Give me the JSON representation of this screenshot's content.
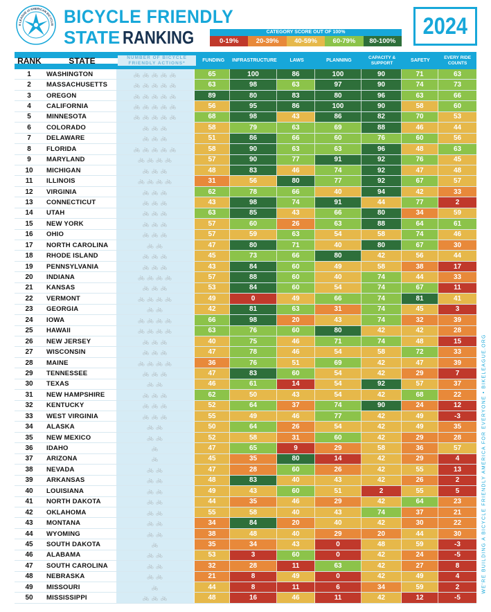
{
  "header": {
    "title_line1": "BICYCLE FRIENDLY",
    "title_line2_word1": "STATE",
    "title_line2_word2": "RANKING",
    "year": "2024",
    "logo_text": "THE LEAGUE of AMERICAN BICYCLISTS"
  },
  "legend": {
    "title": "CATEGORY SCORE OUT OF 100%",
    "items": [
      {
        "label": "0-19%",
        "color": "#c0392b"
      },
      {
        "label": "20-39%",
        "color": "#e8893a"
      },
      {
        "label": "40-59%",
        "color": "#e6b84a"
      },
      {
        "label": "60-79%",
        "color": "#8cc34a"
      },
      {
        "label": "80-100%",
        "color": "#2e6f3a"
      }
    ]
  },
  "side_text": "WE'RE BUILDING A BICYCLE FRIENDLY AMERICA FOR EVERYONE • BIKELEAGUE.ORG",
  "chart_data": {
    "type": "table",
    "columns": [
      "RANK",
      "STATE",
      "NUMBER OF BICYCLE FRIENDLY ACTIONS*",
      "FUNDING",
      "INFRASTRUCTURE",
      "LAWS",
      "PLANNING",
      "CAPACITY & SUPPORT",
      "SAFETY",
      "EVERY RIDE COUNTS"
    ],
    "rows": [
      [
        1,
        "WASHINGTON",
        5,
        65,
        100,
        86,
        100,
        90,
        71,
        63
      ],
      [
        2,
        "MASSACHUSETTS",
        5,
        63,
        98,
        63,
        97,
        90,
        74,
        73
      ],
      [
        3,
        "OREGON",
        5,
        89,
        80,
        83,
        80,
        96,
        63,
        66
      ],
      [
        4,
        "CALIFORNIA",
        5,
        56,
        95,
        86,
        100,
        90,
        58,
        60
      ],
      [
        5,
        "MINNESOTA",
        5,
        68,
        98,
        43,
        86,
        82,
        70,
        53
      ],
      [
        6,
        "COLORADO",
        3,
        58,
        79,
        63,
        69,
        88,
        46,
        44
      ],
      [
        7,
        "DELAWARE",
        3,
        51,
        86,
        66,
        60,
        76,
        60,
        56
      ],
      [
        8,
        "FLORIDA",
        5,
        58,
        90,
        63,
        63,
        96,
        48,
        63
      ],
      [
        9,
        "MARYLAND",
        4,
        57,
        90,
        77,
        91,
        92,
        76,
        45
      ],
      [
        10,
        "MICHIGAN",
        3,
        48,
        83,
        46,
        74,
        92,
        47,
        48
      ],
      [
        11,
        "ILLINOIS",
        4,
        31,
        56,
        80,
        77,
        92,
        67,
        57
      ],
      [
        12,
        "VIRGINIA",
        3,
        62,
        78,
        66,
        40,
        94,
        42,
        33
      ],
      [
        13,
        "CONNECTICUT",
        3,
        43,
        98,
        74,
        91,
        44,
        77,
        2
      ],
      [
        14,
        "UTAH",
        3,
        63,
        85,
        43,
        66,
        80,
        34,
        59
      ],
      [
        15,
        "NEW YORK",
        3,
        57,
        60,
        26,
        63,
        88,
        64,
        61
      ],
      [
        16,
        "OHIO",
        3,
        57,
        59,
        63,
        54,
        58,
        74,
        46
      ],
      [
        17,
        "NORTH CAROLINA",
        2,
        47,
        80,
        71,
        40,
        80,
        67,
        30
      ],
      [
        18,
        "RHODE ISLAND",
        3,
        45,
        73,
        66,
        80,
        42,
        56,
        44
      ],
      [
        19,
        "PENNSYLVANIA",
        3,
        43,
        84,
        60,
        49,
        58,
        38,
        17
      ],
      [
        20,
        "INDIANA",
        4,
        57,
        88,
        60,
        40,
        74,
        44,
        33
      ],
      [
        21,
        "KANSAS",
        3,
        53,
        84,
        60,
        54,
        74,
        67,
        11
      ],
      [
        22,
        "VERMONT",
        4,
        49,
        0,
        49,
        66,
        74,
        81,
        41
      ],
      [
        23,
        "GEORGIA",
        2,
        42,
        81,
        63,
        31,
        74,
        45,
        3
      ],
      [
        24,
        "IOWA",
        4,
        66,
        98,
        20,
        43,
        74,
        32,
        39
      ],
      [
        25,
        "HAWAII",
        4,
        63,
        76,
        60,
        80,
        42,
        42,
        28
      ],
      [
        26,
        "NEW JERSEY",
        3,
        40,
        75,
        46,
        71,
        74,
        48,
        15
      ],
      [
        27,
        "WISCONSIN",
        3,
        47,
        78,
        46,
        54,
        58,
        72,
        33
      ],
      [
        28,
        "MAINE",
        4,
        36,
        76,
        51,
        69,
        42,
        47,
        39
      ],
      [
        29,
        "TENNESSEE",
        3,
        47,
        83,
        60,
        54,
        42,
        29,
        7
      ],
      [
        30,
        "TEXAS",
        2,
        46,
        61,
        14,
        54,
        92,
        57,
        37
      ],
      [
        31,
        "NEW HAMPSHIRE",
        3,
        62,
        50,
        43,
        54,
        42,
        68,
        22
      ],
      [
        32,
        "KENTUCKY",
        3,
        52,
        64,
        37,
        74,
        90,
        24,
        12
      ],
      [
        33,
        "WEST VIRGINIA",
        3,
        55,
        49,
        46,
        77,
        42,
        49,
        -3
      ],
      [
        34,
        "ALASKA",
        2,
        50,
        64,
        26,
        54,
        42,
        49,
        35
      ],
      [
        35,
        "NEW MEXICO",
        2,
        52,
        58,
        31,
        60,
        42,
        29,
        28
      ],
      [
        36,
        "IDAHO",
        1,
        47,
        65,
        9,
        29,
        58,
        36,
        57
      ],
      [
        37,
        "ARIZONA",
        1,
        45,
        35,
        80,
        14,
        42,
        29,
        4
      ],
      [
        38,
        "NEVADA",
        2,
        47,
        28,
        60,
        26,
        42,
        55,
        13
      ],
      [
        39,
        "ARKANSAS",
        2,
        48,
        83,
        40,
        43,
        42,
        26,
        2
      ],
      [
        40,
        "LOUISIANA",
        2,
        49,
        43,
        60,
        51,
        2,
        55,
        5
      ],
      [
        41,
        "NORTH DAKOTA",
        2,
        44,
        35,
        46,
        29,
        42,
        64,
        23
      ],
      [
        42,
        "OKLAHOMA",
        2,
        55,
        58,
        40,
        43,
        74,
        37,
        21
      ],
      [
        43,
        "MONTANA",
        2,
        34,
        84,
        20,
        40,
        42,
        30,
        22
      ],
      [
        44,
        "WYOMING",
        2,
        38,
        48,
        40,
        29,
        20,
        44,
        30
      ],
      [
        45,
        "SOUTH DAKOTA",
        1,
        35,
        34,
        43,
        0,
        48,
        59,
        -3
      ],
      [
        46,
        "ALABAMA",
        2,
        53,
        3,
        60,
        0,
        42,
        24,
        -5
      ],
      [
        47,
        "SOUTH CAROLINA",
        2,
        32,
        28,
        11,
        63,
        42,
        27,
        8
      ],
      [
        48,
        "NEBRASKA",
        2,
        21,
        8,
        49,
        0,
        42,
        49,
        4
      ],
      [
        49,
        "MISSOURI",
        1,
        44,
        8,
        11,
        6,
        34,
        59,
        2
      ],
      [
        50,
        "MISSISSIPPI",
        3,
        48,
        16,
        46,
        11,
        42,
        12,
        -5
      ]
    ]
  }
}
